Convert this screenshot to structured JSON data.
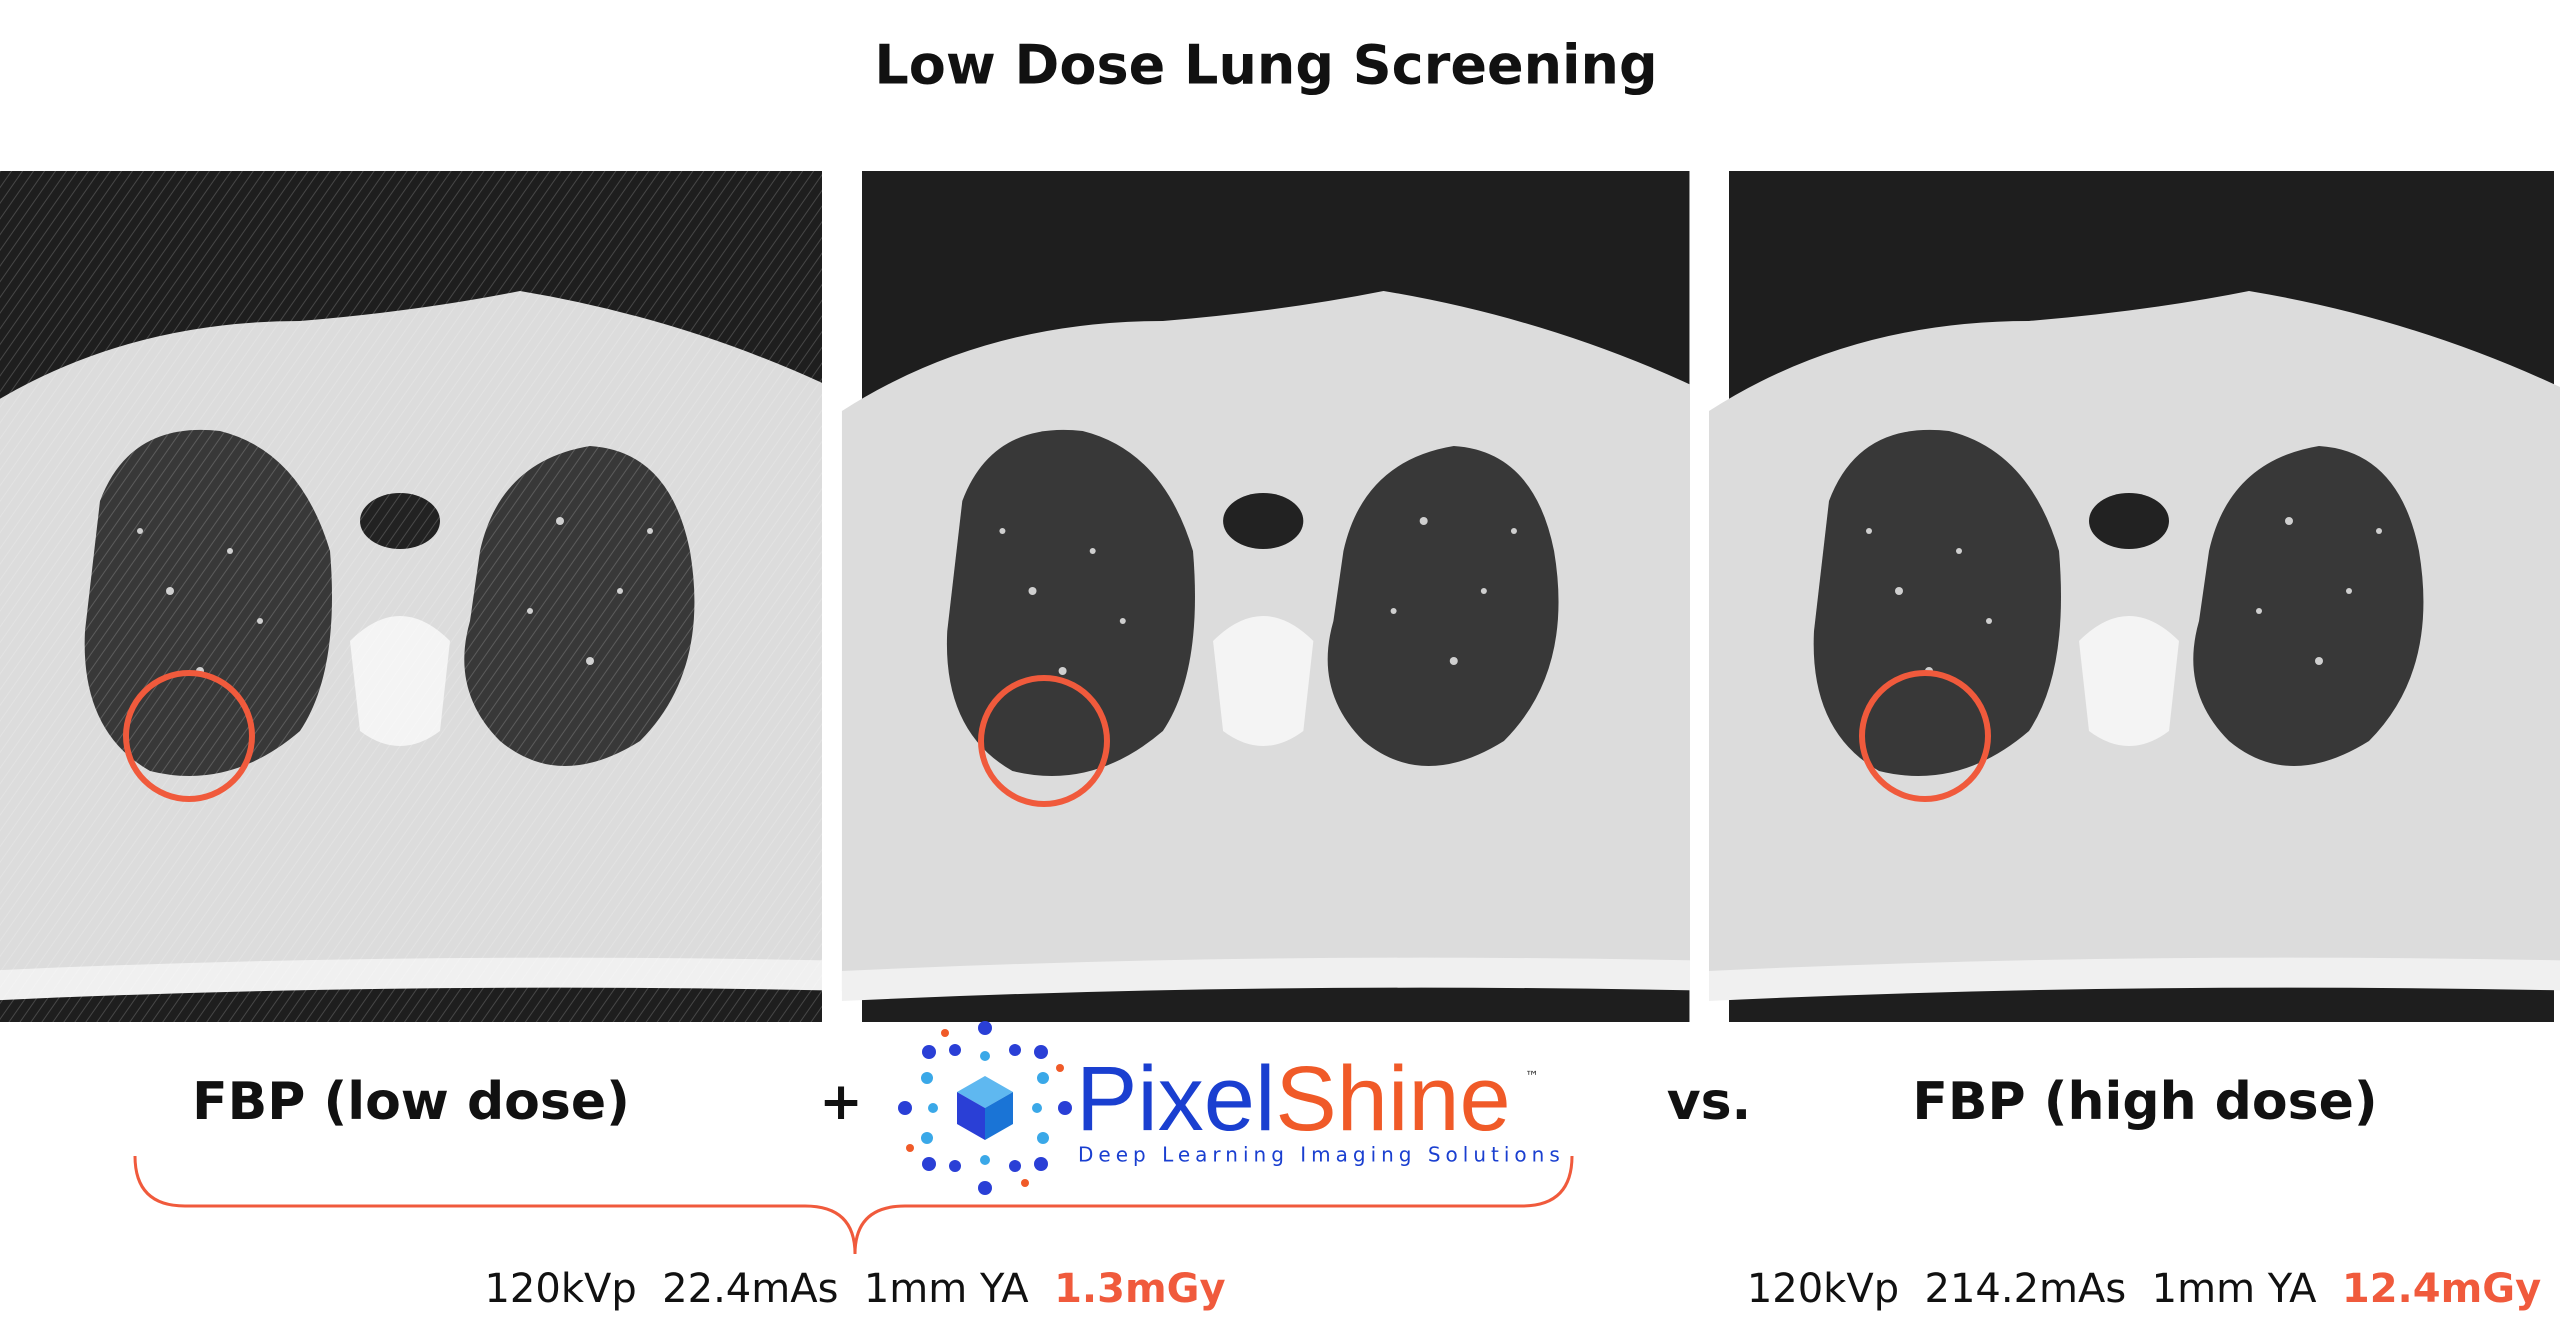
{
  "title": "Low Dose Lung Screening",
  "labels": {
    "low_dose": "FBP (low dose)",
    "plus": "+",
    "vs": "vs.",
    "high_dose": "FBP (high dose)"
  },
  "logo": {
    "pixel": "Pixel",
    "shine": "Shine",
    "tm": "™",
    "tagline": "Deep Learning Imaging Solutions"
  },
  "params_low": {
    "kvp": "120kVp",
    "mas": "22.4mAs",
    "slice": "1mm YA",
    "dose": "1.3mGy"
  },
  "params_high": {
    "kvp": "120kVp",
    "mas": "214.2mAs",
    "slice": "1mm YA",
    "dose": "12.4mGy"
  }
}
